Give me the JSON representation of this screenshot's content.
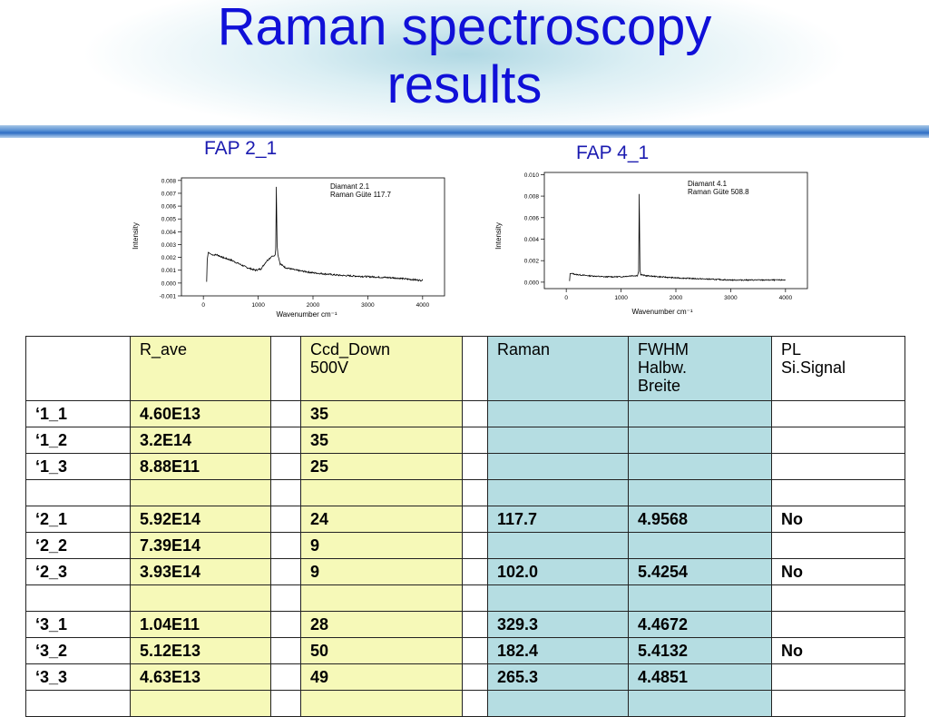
{
  "slide": {
    "title_line1": "Raman spectroscopy",
    "title_line2": "results"
  },
  "plots": [
    {
      "label": "FAP 2_1",
      "annotation_line1": "Diamant 2.1",
      "annotation_line2": "Raman Güte 117.7",
      "y_axis_label": "Intensity",
      "x_axis_label": "Wavenumber cm⁻¹"
    },
    {
      "label": "FAP 4_1",
      "annotation_line1": "Diamant 4.1",
      "annotation_line2": "Raman Güte 508.8",
      "y_axis_label": "Intensity",
      "x_axis_label": "Wavenumber cm⁻¹"
    }
  ],
  "chart_data": [
    {
      "type": "line",
      "title": "",
      "xlabel": "Wavenumber cm⁻¹",
      "ylabel": "Intensity",
      "xlim": [
        -400,
        4400
      ],
      "ylim": [
        -0.001,
        0.0082
      ],
      "xticks": [
        0,
        1000,
        2000,
        3000,
        4000
      ],
      "xtick_labels": [
        "0",
        "1000",
        "2000",
        "3000",
        "4000"
      ],
      "yticks": [
        -0.001,
        0.0,
        0.001,
        0.002,
        0.003,
        0.004,
        0.005,
        0.006,
        0.007,
        0.008
      ],
      "ytick_labels": [
        "-0.001",
        "0.000",
        "0.001",
        "0.002",
        "0.003",
        "0.004",
        "0.005",
        "0.006",
        "0.007",
        "0.008"
      ],
      "annotation": [
        "Diamant 2.1",
        "Raman Güte 117.7"
      ],
      "grid": false,
      "series": [
        {
          "x": [
            60,
            70,
            90,
            120,
            160,
            250,
            350,
            500,
            650,
            800,
            950,
            1050,
            1150,
            1200,
            1250,
            1290,
            1310,
            1320,
            1332,
            1345,
            1360,
            1400,
            1500,
            1700,
            2000,
            2500,
            3000,
            3500,
            4000
          ],
          "y": [
            0.0001,
            0.0018,
            0.0024,
            0.0023,
            0.0022,
            0.0022,
            0.002,
            0.0018,
            0.0015,
            0.0012,
            0.001,
            0.0011,
            0.0017,
            0.0019,
            0.0021,
            0.0021,
            0.0022,
            0.0026,
            0.0075,
            0.003,
            0.0022,
            0.0015,
            0.0012,
            0.001,
            0.0008,
            0.0006,
            0.0005,
            0.0004,
            0.0002
          ]
        }
      ]
    },
    {
      "type": "line",
      "title": "",
      "xlabel": "Wavenumber cm⁻¹",
      "ylabel": "Intensity",
      "xlim": [
        -400,
        4400
      ],
      "ylim": [
        -0.0006,
        0.0102
      ],
      "xticks": [
        0,
        1000,
        2000,
        3000,
        4000
      ],
      "xtick_labels": [
        "0",
        "1000",
        "2000",
        "3000",
        "4000"
      ],
      "yticks": [
        0.0,
        0.002,
        0.004,
        0.006,
        0.008,
        0.01
      ],
      "ytick_labels": [
        "0.000",
        "0.002",
        "0.004",
        "0.006",
        "0.008",
        "0.010"
      ],
      "annotation": [
        "Diamant 4.1",
        "Raman Güte 508.8"
      ],
      "grid": false,
      "series": [
        {
          "x": [
            60,
            70,
            100,
            200,
            400,
            700,
            1000,
            1200,
            1300,
            1320,
            1332,
            1345,
            1360,
            1450,
            1700,
            2000,
            2500,
            3000,
            3500,
            4000
          ],
          "y": [
            0.0001,
            0.0008,
            0.0008,
            0.0007,
            0.0006,
            0.0005,
            0.0005,
            0.0006,
            0.0006,
            0.001,
            0.0082,
            0.0011,
            0.0007,
            0.0006,
            0.0005,
            0.0004,
            0.0003,
            0.0002,
            0.0002,
            0.0002
          ]
        }
      ]
    }
  ],
  "table": {
    "headers": [
      "",
      "R_ave",
      "",
      "Ccd_Down 500V",
      "",
      "Raman",
      "FWHM Halbw. Breite",
      "PL Si.Signal"
    ],
    "header_lines": [
      [
        ""
      ],
      [
        "R_ave"
      ],
      [
        ""
      ],
      [
        "Ccd_Down",
        "500V"
      ],
      [
        ""
      ],
      [
        "Raman"
      ],
      [
        "FWHM",
        "Halbw.",
        "Breite"
      ],
      [
        "PL",
        "Si.Signal"
      ]
    ],
    "rows": [
      [
        "‘1_1",
        "4.60E13",
        "",
        "35",
        "",
        "",
        "",
        ""
      ],
      [
        "‘1_2",
        "3.2E14",
        "",
        "35",
        "",
        "",
        "",
        ""
      ],
      [
        "‘1_3",
        "8.88E11",
        "",
        "25",
        "",
        "",
        "",
        ""
      ],
      [
        "",
        "",
        "",
        "",
        "",
        "",
        "",
        ""
      ],
      [
        "‘2_1",
        "5.92E14",
        "",
        "24",
        "",
        "117.7",
        "4.9568",
        "No"
      ],
      [
        "‘2_2",
        "7.39E14",
        "",
        "9",
        "",
        "",
        "",
        ""
      ],
      [
        "‘2_3",
        "3.93E14",
        "",
        "9",
        "",
        "102.0",
        "5.4254",
        "No"
      ],
      [
        "",
        "",
        "",
        "",
        "",
        "",
        "",
        ""
      ],
      [
        "‘3_1",
        "1.04E11",
        "",
        "28",
        "",
        "329.3",
        "4.4672",
        ""
      ],
      [
        "‘3_2",
        "5.12E13",
        "",
        "50",
        "",
        "182.4",
        "5.4132",
        "No"
      ],
      [
        "‘3_3",
        "4.63E13",
        "",
        "49",
        "",
        "265.3",
        "4.4851",
        ""
      ],
      [
        "",
        "",
        "",
        "",
        "",
        "",
        "",
        ""
      ]
    ],
    "column_colors": [
      "#ffffff",
      "#f6f9b8",
      "#ffffff",
      "#f6f9b8",
      "#ffffff",
      "#b5dde2",
      "#b5dde2",
      "#ffffff"
    ]
  }
}
